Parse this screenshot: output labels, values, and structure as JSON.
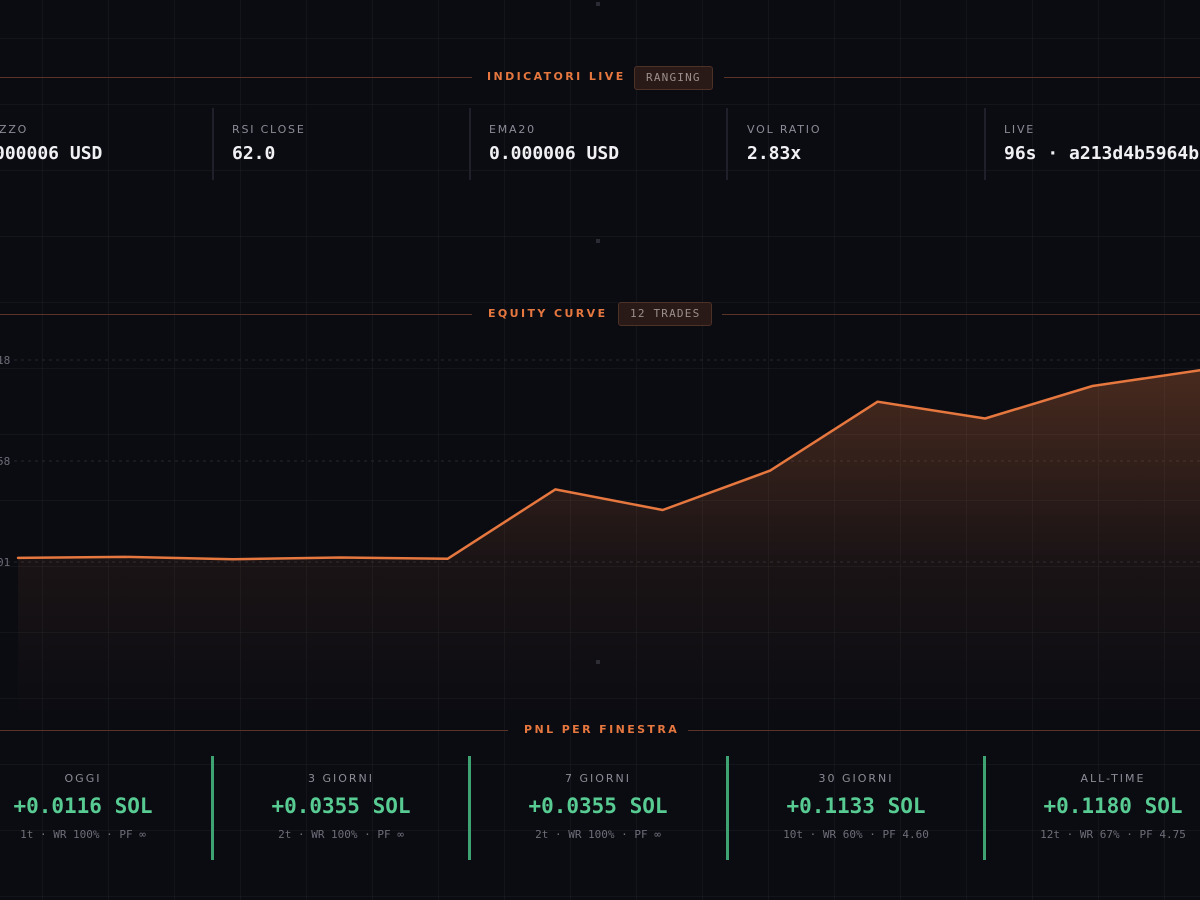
{
  "indicators_section": {
    "title": "INDICATORI LIVE",
    "badge": "RANGING",
    "items": [
      {
        "label": "ZZO",
        "value": "000006 USD"
      },
      {
        "label": "RSI CLOSE",
        "value": "62.0"
      },
      {
        "label": "EMA20",
        "value": "0.000006 USD"
      },
      {
        "label": "VOL RATIO",
        "value": "2.83x"
      },
      {
        "label": "LIVE",
        "value": "96s · a213d4b5964b"
      }
    ]
  },
  "equity_section": {
    "title": "EQUITY CURVE",
    "badge": "12 TRADES"
  },
  "chart_data": {
    "type": "area",
    "x": [
      0,
      1,
      2,
      3,
      4,
      5,
      6,
      7,
      8,
      9,
      10,
      11
    ],
    "y_tick_labels": [
      "18",
      "58",
      "01"
    ],
    "series": [
      {
        "values": [
          0.0007,
          0.0012,
          0.0,
          0.0009,
          0.0003,
          0.0355,
          0.025,
          0.045,
          0.08,
          0.0715,
          0.088,
          0.096
        ]
      }
    ],
    "ylim": [
      -0.0014,
      0.1012
    ],
    "line_color": "#e5773f",
    "fill_color": "#e5773f",
    "grid": true
  },
  "pnl_section": {
    "title": "PNL PER FINESTRA",
    "windows": [
      {
        "label": "OGGI",
        "value": "+0.0116 SOL",
        "stats": "1t · WR 100% · PF ∞"
      },
      {
        "label": "3 GIORNI",
        "value": "+0.0355 SOL",
        "stats": "2t · WR 100% · PF ∞"
      },
      {
        "label": "7 GIORNI",
        "value": "+0.0355 SOL",
        "stats": "2t · WR 100% · PF ∞"
      },
      {
        "label": "30 GIORNI",
        "value": "+0.1133 SOL",
        "stats": "10t · WR 60% · PF 4.60"
      },
      {
        "label": "ALL-TIME",
        "value": "+0.1180 SOL",
        "stats": "12t · WR 67% · PF 4.75"
      }
    ]
  },
  "colors": {
    "background": "#0b0c12",
    "accent": "#e5773f",
    "positive": "#58cb93",
    "positive_bar": "#3fa272"
  }
}
